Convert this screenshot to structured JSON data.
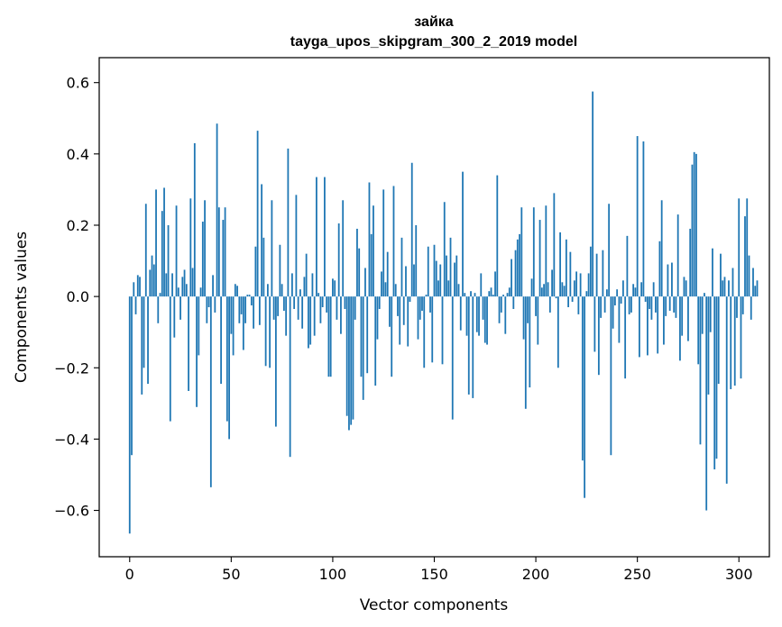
{
  "chart_data": {
    "type": "bar",
    "title": "зайка",
    "subtitle": "tayga_upos_skipgram_300_2_2019 model",
    "xlabel": "Vector components",
    "ylabel": "Components values",
    "xlim": [
      -15,
      315
    ],
    "ylim": [
      -0.73,
      0.67
    ],
    "x_ticks": [
      0,
      50,
      100,
      150,
      200,
      250,
      300
    ],
    "x_tick_labels": [
      "0",
      "50",
      "100",
      "150",
      "200",
      "250",
      "300"
    ],
    "y_ticks": [
      -0.6,
      -0.4,
      -0.2,
      0.0,
      0.2,
      0.4,
      0.6
    ],
    "y_tick_labels": [
      "−0.6",
      "−0.4",
      "−0.2",
      "0.0",
      "0.2",
      "0.4",
      "0.6"
    ],
    "bar_color": "#1f77b4",
    "grid": false,
    "values": [
      -0.665,
      -0.445,
      0.04,
      -0.05,
      0.06,
      0.055,
      -0.275,
      -0.2,
      0.26,
      -0.245,
      0.075,
      0.115,
      0.09,
      0.3,
      -0.075,
      0.01,
      0.24,
      0.305,
      0.065,
      0.2,
      -0.35,
      0.065,
      -0.115,
      0.255,
      0.025,
      -0.065,
      0.055,
      0.075,
      0.035,
      -0.265,
      0.275,
      0.08,
      0.43,
      -0.31,
      -0.165,
      0.025,
      0.21,
      0.27,
      -0.075,
      -0.03,
      -0.535,
      0.06,
      -0.045,
      0.485,
      0.25,
      -0.245,
      0.215,
      0.25,
      -0.35,
      -0.4,
      -0.105,
      -0.165,
      0.035,
      0.03,
      -0.075,
      -0.05,
      -0.15,
      -0.075,
      0.005,
      0.005,
      -0.025,
      -0.09,
      0.14,
      0.465,
      -0.08,
      0.315,
      0.165,
      -0.195,
      0.035,
      -0.2,
      0.27,
      -0.065,
      -0.365,
      -0.055,
      0.145,
      0.035,
      -0.04,
      -0.11,
      0.415,
      -0.45,
      0.065,
      -0.035,
      0.285,
      -0.065,
      0.02,
      -0.09,
      0.055,
      0.12,
      -0.145,
      -0.135,
      0.065,
      -0.11,
      0.335,
      0.01,
      -0.075,
      -0.03,
      0.335,
      -0.045,
      -0.225,
      -0.225,
      0.05,
      0.045,
      -0.065,
      0.205,
      -0.105,
      0.27,
      -0.035,
      -0.335,
      -0.375,
      -0.36,
      -0.345,
      -0.065,
      0.19,
      0.135,
      -0.225,
      -0.29,
      0.08,
      -0.215,
      0.32,
      0.175,
      0.255,
      -0.25,
      -0.12,
      -0.035,
      0.07,
      0.3,
      0.04,
      0.125,
      -0.085,
      -0.225,
      0.31,
      0.035,
      -0.055,
      -0.135,
      0.165,
      -0.08,
      0.085,
      -0.14,
      -0.015,
      0.375,
      0.09,
      0.2,
      -0.12,
      -0.065,
      -0.04,
      -0.2,
      0.005,
      0.14,
      -0.045,
      -0.185,
      0.145,
      0.1,
      0.045,
      0.09,
      -0.19,
      0.265,
      0.115,
      0.045,
      0.165,
      -0.345,
      0.095,
      0.115,
      0.035,
      -0.095,
      0.35,
      0.01,
      -0.11,
      -0.275,
      0.015,
      -0.285,
      0.01,
      -0.1,
      -0.11,
      0.065,
      -0.065,
      -0.13,
      -0.135,
      0.015,
      0.025,
      0.005,
      0.07,
      0.34,
      -0.075,
      -0.045,
      0.005,
      -0.105,
      0.01,
      0.025,
      0.105,
      -0.035,
      0.13,
      0.16,
      0.175,
      0.25,
      -0.12,
      -0.315,
      -0.075,
      -0.255,
      0.05,
      0.25,
      -0.055,
      -0.135,
      0.215,
      0.025,
      0.035,
      0.255,
      0.04,
      -0.045,
      0.075,
      0.29,
      -0.005,
      -0.2,
      0.18,
      0.04,
      0.03,
      0.16,
      -0.03,
      0.125,
      -0.015,
      0.045,
      0.07,
      -0.05,
      0.065,
      -0.46,
      -0.565,
      0.015,
      0.065,
      0.14,
      0.575,
      -0.155,
      0.12,
      -0.22,
      -0.06,
      0.13,
      -0.045,
      0.02,
      0.26,
      -0.445,
      -0.09,
      -0.025,
      0.02,
      -0.13,
      -0.02,
      0.045,
      -0.23,
      0.17,
      -0.05,
      -0.045,
      0.035,
      0.025,
      0.45,
      -0.17,
      0.04,
      0.435,
      -0.015,
      -0.165,
      -0.035,
      -0.065,
      0.04,
      -0.045,
      -0.16,
      0.155,
      0.27,
      -0.135,
      -0.055,
      0.09,
      -0.04,
      0.095,
      -0.045,
      -0.06,
      0.23,
      -0.18,
      -0.11,
      0.055,
      0.045,
      -0.125,
      0.19,
      0.37,
      0.405,
      0.4,
      -0.19,
      -0.415,
      -0.105,
      0.01,
      -0.6,
      -0.275,
      -0.1,
      0.135,
      -0.485,
      -0.455,
      -0.245,
      0.12,
      0.045,
      0.055,
      -0.525,
      0.045,
      -0.26,
      0.08,
      -0.25,
      -0.06,
      0.275,
      -0.23,
      -0.05,
      0.225,
      0.275,
      0.115,
      -0.065,
      0.08,
      0.03,
      0.045
    ]
  }
}
